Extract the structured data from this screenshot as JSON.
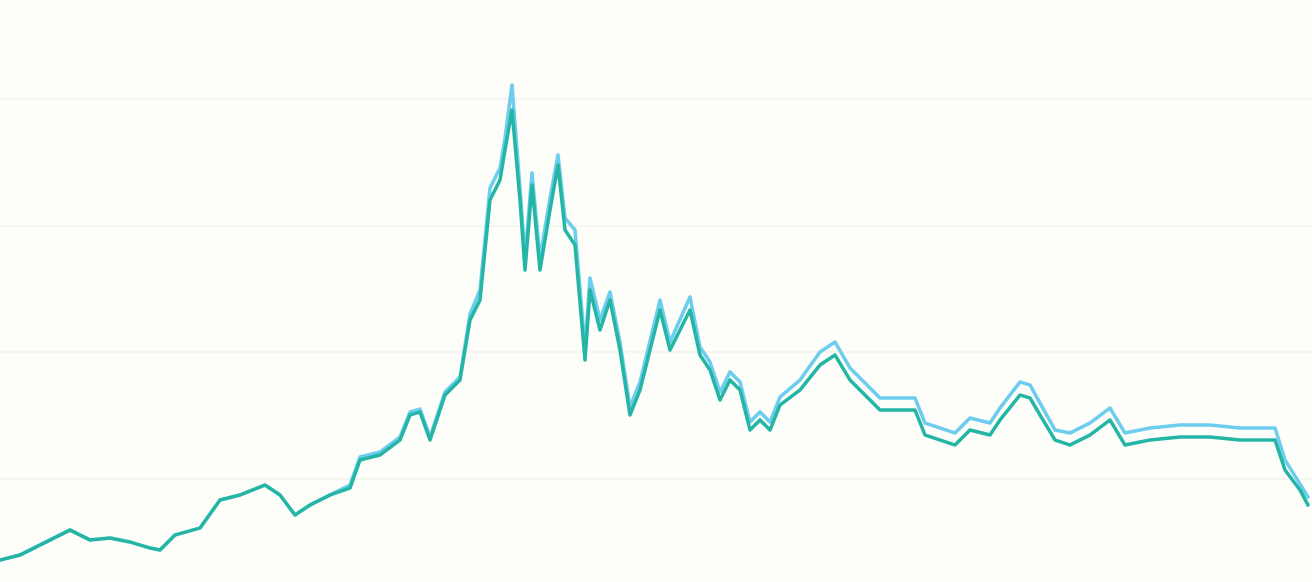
{
  "chart_data": {
    "type": "line",
    "x": [
      0,
      20,
      40,
      60,
      70,
      90,
      110,
      130,
      150,
      160,
      175,
      200,
      220,
      240,
      265,
      280,
      295,
      310,
      330,
      350,
      360,
      380,
      400,
      410,
      420,
      430,
      445,
      460,
      470,
      480,
      490,
      500,
      505,
      512,
      520,
      525,
      532,
      540,
      550,
      558,
      565,
      575,
      585,
      590,
      600,
      610,
      620,
      630,
      640,
      660,
      670,
      690,
      700,
      710,
      720,
      730,
      740,
      750,
      760,
      770,
      780,
      800,
      820,
      835,
      850,
      870,
      880,
      900,
      915,
      925,
      940,
      955,
      970,
      990,
      1000,
      1020,
      1030,
      1040,
      1055,
      1070,
      1090,
      1110,
      1125,
      1150,
      1180,
      1210,
      1240,
      1275,
      1285,
      1300,
      1308
    ],
    "series": [
      {
        "color": "#6ccdee",
        "values": [
          22,
          27,
          37,
          47,
          52,
          42,
          44,
          40,
          34,
          32,
          47,
          54,
          82,
          87,
          97,
          87,
          67,
          77,
          87,
          97,
          125,
          130,
          145,
          170,
          173,
          145,
          190,
          205,
          268,
          292,
          394,
          414,
          444,
          497,
          394,
          324,
          409,
          324,
          384,
          427,
          364,
          352,
          234,
          304,
          262,
          290,
          240,
          175,
          200,
          282,
          240,
          285,
          235,
          220,
          190,
          210,
          200,
          160,
          170,
          160,
          185,
          202,
          230,
          240,
          214,
          194,
          184,
          184,
          184,
          159,
          154,
          149,
          164,
          159,
          174,
          200,
          197,
          179,
          152,
          149,
          159,
          174,
          149,
          154,
          157,
          157,
          154,
          154,
          122,
          98,
          85
        ]
      },
      {
        "color": "#25b5a5",
        "values": [
          22,
          27,
          37,
          47,
          52,
          42,
          44,
          40,
          34,
          32,
          47,
          54,
          82,
          87,
          97,
          87,
          67,
          77,
          87,
          94,
          122,
          127,
          142,
          167,
          170,
          142,
          187,
          202,
          262,
          282,
          382,
          402,
          432,
          472,
          382,
          312,
          397,
          312,
          372,
          417,
          352,
          337,
          222,
          292,
          252,
          282,
          232,
          167,
          192,
          272,
          232,
          272,
          227,
          212,
          182,
          202,
          192,
          152,
          162,
          152,
          177,
          192,
          217,
          227,
          202,
          182,
          172,
          172,
          172,
          147,
          142,
          137,
          152,
          147,
          162,
          187,
          184,
          167,
          142,
          137,
          147,
          162,
          137,
          142,
          145,
          145,
          142,
          142,
          112,
          92,
          77
        ]
      }
    ],
    "xlim": [
      0,
      1308
    ],
    "ylim": [
      0,
      582
    ],
    "yticks": [
      103,
      230,
      356,
      483
    ],
    "grid": true
  }
}
